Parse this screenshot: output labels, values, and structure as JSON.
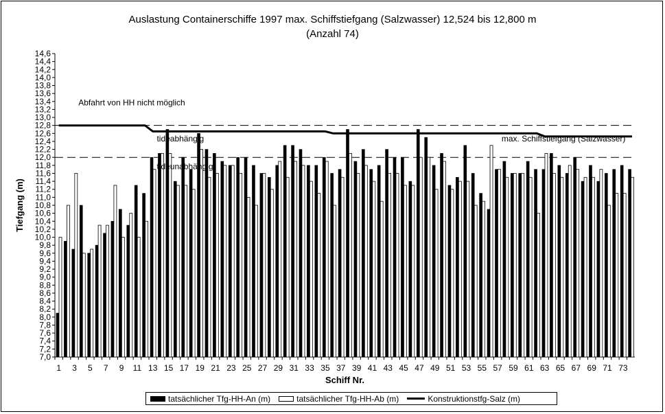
{
  "chart_data": {
    "type": "bar",
    "title": "Auslastung Containerschiffe 1997 max. Schiffstiefgang (Salzwasser) 12,524 bis 12,800 m",
    "subtitle": "(Anzahl 74)",
    "xlabel": "Schiff Nr.",
    "ylabel": "Tiefgang (m)",
    "ylim": [
      7.0,
      14.6
    ],
    "ytick_step": 0.2,
    "yticks": [
      "7,0",
      "7,2",
      "7,4",
      "7,6",
      "7,8",
      "8,0",
      "8,2",
      "8,4",
      "8,6",
      "8,8",
      "9,0",
      "9,2",
      "9,4",
      "9,6",
      "9,8",
      "10,0",
      "10,2",
      "10,4",
      "10,6",
      "10,8",
      "11,0",
      "11,2",
      "11,4",
      "11,6",
      "11,8",
      "12,0",
      "12,2",
      "12,4",
      "12,6",
      "12,8",
      "13,0",
      "13,2",
      "13,4",
      "13,6",
      "13,8",
      "14,0",
      "14,2",
      "14,4",
      "14,6"
    ],
    "x": [
      1,
      2,
      3,
      4,
      5,
      6,
      7,
      8,
      9,
      10,
      11,
      12,
      13,
      14,
      15,
      16,
      17,
      18,
      19,
      20,
      21,
      22,
      23,
      24,
      25,
      26,
      27,
      28,
      29,
      30,
      31,
      32,
      33,
      34,
      35,
      36,
      37,
      38,
      39,
      40,
      41,
      42,
      43,
      44,
      45,
      46,
      47,
      48,
      49,
      50,
      51,
      52,
      53,
      54,
      55,
      56,
      57,
      58,
      59,
      60,
      61,
      62,
      63,
      64,
      65,
      66,
      67,
      68,
      69,
      70,
      71,
      72,
      73,
      74
    ],
    "xticks": [
      "1",
      "3",
      "5",
      "7",
      "9",
      "11",
      "13",
      "15",
      "17",
      "19",
      "21",
      "23",
      "25",
      "27",
      "29",
      "31",
      "33",
      "35",
      "37",
      "39",
      "41",
      "43",
      "45",
      "47",
      "49",
      "51",
      "53",
      "55",
      "57",
      "59",
      "61",
      "63",
      "65",
      "67",
      "69",
      "71",
      "73"
    ],
    "series": [
      {
        "name": "tatsächlicher Tfg-HH-An (m)",
        "style": "black-bar",
        "values": [
          8.1,
          9.9,
          9.7,
          10.8,
          9.6,
          9.8,
          10.1,
          10.4,
          10.7,
          10.3,
          11.3,
          11.1,
          12.0,
          12.1,
          12.7,
          11.4,
          12.0,
          11.7,
          12.6,
          12.2,
          12.1,
          11.9,
          11.8,
          12.0,
          12.0,
          11.8,
          11.6,
          11.5,
          11.8,
          12.3,
          12.3,
          12.2,
          11.8,
          11.8,
          12.0,
          11.6,
          11.7,
          12.7,
          11.9,
          12.2,
          11.7,
          11.8,
          12.2,
          12.0,
          12.0,
          11.4,
          12.7,
          12.5,
          11.8,
          12.1,
          11.3,
          11.5,
          12.3,
          11.6,
          11.1,
          10.7,
          11.7,
          11.9,
          11.6,
          11.6,
          11.9,
          11.7,
          11.7,
          12.1,
          11.8,
          11.6,
          12.0,
          11.4,
          11.8,
          11.4,
          11.6,
          11.7,
          11.8,
          11.7
        ]
      },
      {
        "name": "tatsächlicher Tfg-HH-Ab (m)",
        "style": "white-bar",
        "values": [
          10.0,
          10.8,
          11.6,
          9.6,
          9.7,
          10.3,
          10.3,
          11.3,
          10.0,
          10.6,
          10.0,
          10.4,
          11.7,
          12.1,
          12.1,
          11.3,
          11.3,
          11.2,
          12.2,
          11.5,
          11.6,
          11.8,
          11.8,
          11.6,
          11.0,
          10.8,
          11.6,
          11.2,
          11.9,
          11.5,
          11.9,
          11.8,
          11.4,
          11.1,
          11.9,
          10.8,
          11.5,
          12.1,
          11.6,
          11.8,
          11.4,
          10.9,
          11.6,
          11.6,
          11.3,
          11.3,
          12.0,
          12.0,
          11.2,
          11.9,
          11.2,
          11.4,
          11.4,
          10.8,
          10.9,
          12.3,
          11.7,
          11.5,
          11.6,
          11.6,
          11.5,
          10.6,
          12.1,
          11.6,
          11.5,
          11.8,
          11.7,
          11.5,
          11.5,
          11.7,
          10.8,
          11.1,
          11.1,
          11.5
        ]
      },
      {
        "name": "Konstruktionstfg-Salz (m)",
        "style": "line",
        "values": [
          12.8,
          12.8,
          12.8,
          12.8,
          12.8,
          12.8,
          12.8,
          12.8,
          12.8,
          12.8,
          12.8,
          12.8,
          12.65,
          12.65,
          12.65,
          12.65,
          12.65,
          12.65,
          12.65,
          12.65,
          12.65,
          12.65,
          12.65,
          12.65,
          12.65,
          12.65,
          12.65,
          12.65,
          12.65,
          12.65,
          12.65,
          12.65,
          12.65,
          12.65,
          12.65,
          12.6,
          12.6,
          12.6,
          12.6,
          12.6,
          12.6,
          12.6,
          12.6,
          12.6,
          12.6,
          12.6,
          12.6,
          12.6,
          12.6,
          12.6,
          12.6,
          12.6,
          12.6,
          12.6,
          12.6,
          12.6,
          12.6,
          12.6,
          12.6,
          12.6,
          12.6,
          12.6,
          12.524,
          12.524,
          12.524,
          12.524,
          12.524,
          12.524,
          12.524,
          12.524,
          12.524,
          12.524,
          12.524,
          12.524
        ]
      }
    ],
    "reference_lines": [
      12.8,
      12.0
    ],
    "annotations": [
      {
        "text": "Abfahrt von HH nicht möglich",
        "y": 13.3,
        "xi": 3
      },
      {
        "text": "tideabhängig",
        "y": 12.4,
        "xi": 13
      },
      {
        "text": "tideunabhängig",
        "y": 11.7,
        "xi": 13
      },
      {
        "text": "max. Schiffstiefgang (Salzwasser)",
        "y": 12.4,
        "xi": 57
      }
    ],
    "legend_position": "bottom",
    "grid": false
  },
  "legend": {
    "an": "tatsächlicher Tfg-HH-An (m)",
    "ab": "tatsächlicher Tfg-HH-Ab (m)",
    "konst": "Konstruktionstfg-Salz (m)"
  }
}
